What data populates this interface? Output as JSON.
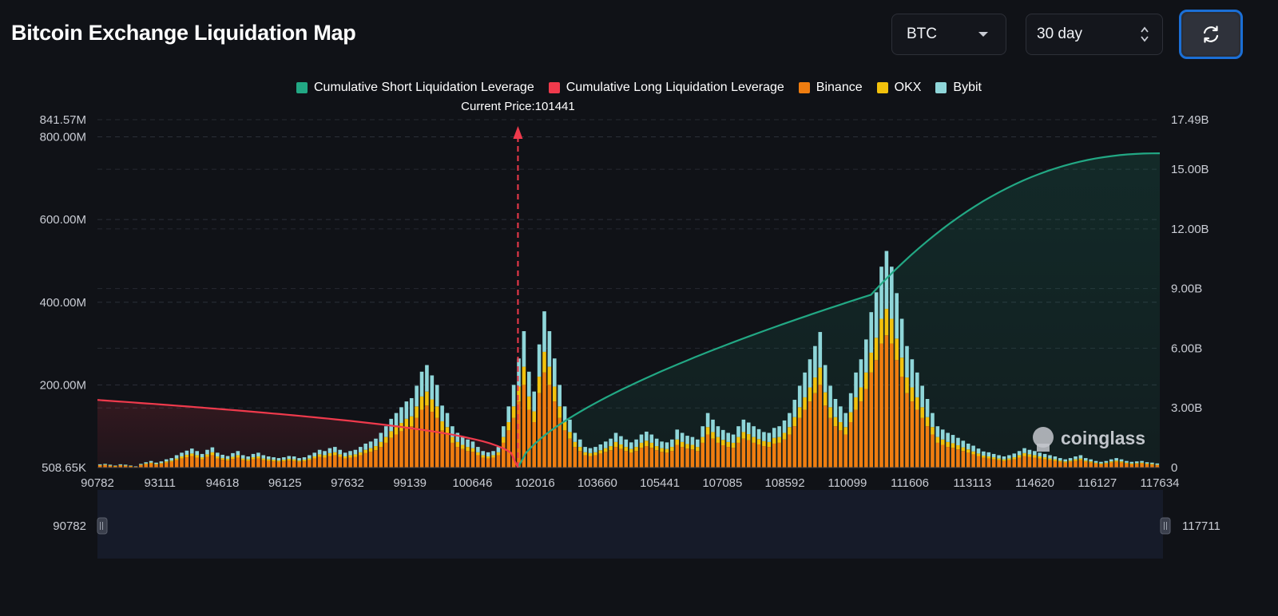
{
  "header": {
    "title": "Bitcoin Exchange Liquidation Map",
    "coin_select": "BTC",
    "period_select": "30 day",
    "refresh_icon": "refresh-icon"
  },
  "legend": [
    {
      "label": "Cumulative Short Liquidation Leverage",
      "color": "#22a884"
    },
    {
      "label": "Cumulative Long Liquidation Leverage",
      "color": "#ef3a4c"
    },
    {
      "label": "Binance",
      "color": "#ef7d10"
    },
    {
      "label": "OKX",
      "color": "#f2c10c"
    },
    {
      "label": "Bybit",
      "color": "#8fd6d9"
    }
  ],
  "watermark": "coinglass",
  "chart_data": {
    "type": "bar",
    "current_price_label": "Current Price:101441",
    "current_price": 101441,
    "x_tick_labels": [
      "90782",
      "93111",
      "94618",
      "96125",
      "97632",
      "99139",
      "100646",
      "102016",
      "103660",
      "105441",
      "107085",
      "108592",
      "110099",
      "111606",
      "113113",
      "114620",
      "116127",
      "117634"
    ],
    "y_left_ticks": [
      "508.65K",
      "200.00M",
      "400.00M",
      "600.00M",
      "800.00M",
      "841.57M"
    ],
    "y_left_range": [
      508650,
      841570000
    ],
    "y_right_ticks": [
      "0",
      "3.00B",
      "6.00B",
      "9.00B",
      "12.00B",
      "15.00B",
      "17.49B"
    ],
    "y_right_range": [
      0,
      17490000000
    ],
    "grid": true,
    "legend_position": "top",
    "zoom_range_labels": [
      "90782",
      "117711"
    ],
    "series": [
      {
        "name": "Binance",
        "values_M": [
          5,
          6,
          4,
          3,
          5,
          4,
          3,
          2,
          6,
          8,
          10,
          7,
          9,
          12,
          14,
          18,
          22,
          25,
          28,
          24,
          20,
          26,
          30,
          22,
          19,
          17,
          21,
          24,
          18,
          16,
          20,
          22,
          18,
          16,
          15,
          14,
          15,
          17,
          16,
          14,
          15,
          18,
          22,
          26,
          24,
          28,
          30,
          26,
          22,
          24,
          26,
          30,
          35,
          38,
          42,
          50,
          60,
          72,
          80,
          88,
          96,
          100,
          120,
          140,
          150,
          135,
          120,
          90,
          80,
          60,
          50,
          45,
          40,
          38,
          30,
          24,
          22,
          24,
          30,
          60,
          90,
          120,
          160,
          200,
          140,
          110,
          180,
          230,
          200,
          160,
          120,
          90,
          70,
          50,
          40,
          30,
          28,
          30,
          34,
          38,
          42,
          50,
          45,
          40,
          36,
          40,
          48,
          52,
          48,
          42,
          38,
          36,
          40,
          55,
          50,
          46,
          44,
          40,
          60,
          80,
          70,
          60,
          54,
          50,
          48,
          60,
          70,
          66,
          60,
          56,
          52,
          50,
          58,
          60,
          68,
          80,
          100,
          120,
          140,
          160,
          180,
          200,
          150,
          120,
          100,
          90,
          80,
          110,
          140,
          160,
          190,
          230,
          260,
          300,
          320,
          300,
          260,
          220,
          180,
          160,
          140,
          120,
          100,
          80,
          60,
          55,
          50,
          48,
          44,
          40,
          36,
          32,
          28,
          24,
          22,
          20,
          18,
          16,
          18,
          20,
          24,
          28,
          26,
          24,
          22,
          20,
          18,
          16,
          14,
          12,
          14,
          16,
          18,
          14,
          12,
          10,
          8,
          10,
          12,
          14,
          12,
          10,
          8,
          9,
          10,
          8,
          7,
          6
        ]
      },
      {
        "name": "OKX",
        "values_M": [
          1,
          1,
          1,
          1,
          1,
          1,
          1,
          0,
          1,
          2,
          2,
          2,
          2,
          3,
          3,
          4,
          5,
          6,
          6,
          6,
          5,
          6,
          7,
          5,
          4,
          4,
          5,
          6,
          4,
          4,
          5,
          5,
          4,
          4,
          4,
          3,
          4,
          4,
          4,
          3,
          4,
          4,
          5,
          6,
          6,
          7,
          7,
          6,
          5,
          6,
          6,
          7,
          8,
          9,
          10,
          12,
          14,
          16,
          18,
          20,
          22,
          24,
          28,
          32,
          34,
          30,
          28,
          22,
          18,
          14,
          12,
          10,
          10,
          9,
          7,
          6,
          5,
          6,
          7,
          14,
          20,
          28,
          36,
          44,
          32,
          26,
          40,
          50,
          44,
          36,
          28,
          20,
          16,
          12,
          10,
          7,
          7,
          7,
          8,
          9,
          10,
          12,
          11,
          10,
          9,
          10,
          12,
          13,
          12,
          10,
          9,
          9,
          10,
          13,
          12,
          11,
          11,
          10,
          14,
          18,
          16,
          14,
          13,
          12,
          12,
          14,
          16,
          15,
          14,
          13,
          12,
          12,
          14,
          14,
          16,
          18,
          22,
          26,
          30,
          34,
          38,
          42,
          32,
          26,
          22,
          20,
          18,
          24,
          30,
          34,
          40,
          48,
          54,
          60,
          64,
          60,
          52,
          46,
          38,
          34,
          30,
          26,
          22,
          18,
          14,
          13,
          12,
          11,
          10,
          9,
          8,
          7,
          6,
          5,
          5,
          5,
          4,
          4,
          4,
          5,
          6,
          7,
          6,
          6,
          5,
          5,
          4,
          4,
          3,
          3,
          3,
          4,
          4,
          3,
          3,
          2,
          2,
          2,
          3,
          3,
          3,
          2,
          2,
          2,
          2,
          2,
          2,
          1
        ]
      },
      {
        "name": "Bybit",
        "values_M": [
          2,
          2,
          2,
          1,
          2,
          2,
          1,
          1,
          2,
          3,
          4,
          3,
          4,
          5,
          6,
          8,
          9,
          10,
          12,
          10,
          8,
          11,
          12,
          9,
          8,
          7,
          9,
          10,
          8,
          7,
          8,
          9,
          8,
          7,
          6,
          6,
          6,
          7,
          7,
          6,
          6,
          8,
          9,
          11,
          10,
          12,
          13,
          11,
          9,
          10,
          11,
          13,
          15,
          16,
          18,
          22,
          26,
          30,
          34,
          38,
          42,
          44,
          50,
          60,
          64,
          58,
          52,
          38,
          34,
          26,
          22,
          20,
          18,
          16,
          13,
          10,
          10,
          10,
          13,
          26,
          38,
          52,
          68,
          86,
          60,
          48,
          78,
          98,
          86,
          68,
          52,
          38,
          30,
          22,
          18,
          13,
          12,
          13,
          14,
          16,
          18,
          22,
          20,
          18,
          16,
          18,
          20,
          22,
          20,
          18,
          16,
          16,
          18,
          24,
          22,
          20,
          19,
          18,
          26,
          34,
          30,
          26,
          24,
          22,
          20,
          26,
          30,
          28,
          26,
          24,
          22,
          22,
          24,
          26,
          30,
          34,
          42,
          52,
          60,
          68,
          76,
          86,
          66,
          52,
          44,
          38,
          34,
          46,
          60,
          68,
          80,
          98,
          110,
          126,
          140,
          126,
          110,
          94,
          76,
          68,
          60,
          52,
          44,
          34,
          26,
          24,
          22,
          20,
          18,
          16,
          14,
          14,
          12,
          10,
          10,
          8,
          8,
          7,
          8,
          9,
          10,
          12,
          11,
          10,
          9,
          8,
          8,
          7,
          6,
          5,
          6,
          7,
          8,
          6,
          5,
          4,
          4,
          4,
          5,
          6,
          5,
          4,
          4,
          4,
          4,
          3,
          3,
          3
        ]
      }
    ],
    "cumulative_long": {
      "name": "Cumulative Long Liquidation Leverage",
      "start_value": 3.4,
      "end_x": 101441,
      "unit": "B"
    },
    "cumulative_short": {
      "name": "Cumulative Short Liquidation Leverage",
      "start_x": 101441,
      "end_value": 15.8,
      "unit": "B"
    }
  }
}
